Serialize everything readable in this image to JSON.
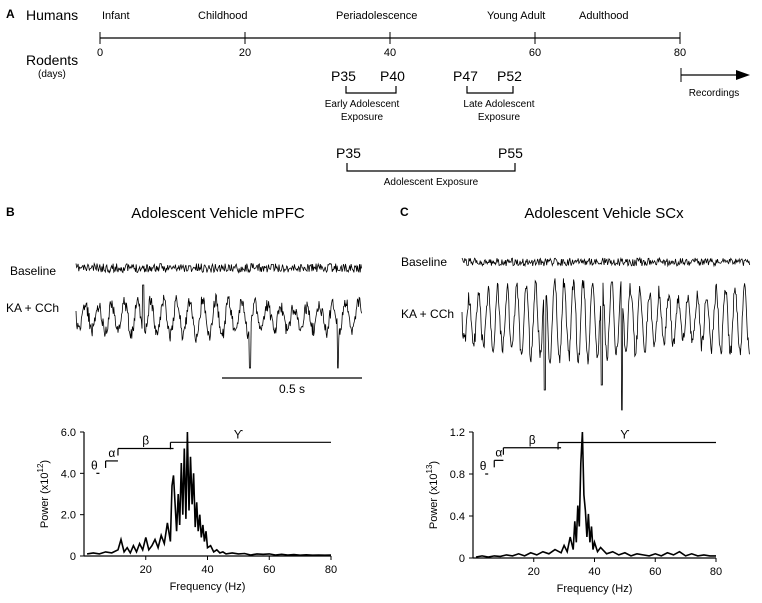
{
  "panel_a": {
    "letter": "A",
    "humans_label": "Humans",
    "rodents_label": "Rodents",
    "days_label": "(days)",
    "stages": [
      "Infant",
      "Childhood",
      "Periadolescence",
      "Young Adult",
      "Adulthood"
    ],
    "ticks": [
      "0",
      "20",
      "40",
      "60",
      "80"
    ],
    "early": {
      "start": "P35",
      "end": "P40",
      "label_line1": "Early Adolescent",
      "label_line2": "Exposure"
    },
    "late": {
      "start": "P47",
      "end": "P52",
      "label_line1": "Late Adolescent",
      "label_line2": "Exposure"
    },
    "full": {
      "start": "P35",
      "end": "P55",
      "label": "Adolescent Exposure"
    },
    "recordings_label": "Recordings"
  },
  "panel_b": {
    "letter": "B",
    "title": "Adolescent Vehicle mPFC",
    "baseline_label": "Baseline",
    "drug_label": "KA + CCh",
    "scale_label": "0.5 s"
  },
  "panel_c": {
    "letter": "C",
    "title": "Adolescent Vehicle SCx",
    "baseline_label": "Baseline",
    "drug_label": "KA + CCh"
  },
  "bands": {
    "theta": "θ",
    "alpha": "α",
    "beta": "β",
    "gamma": "ϒ"
  },
  "chart_data": [
    {
      "type": "line",
      "panel": "B",
      "xlabel": "Frequency (Hz)",
      "ylabel": "Power (x10",
      "ylabel_exp": "12",
      "ylabel_end": ")",
      "xlim": [
        0,
        80
      ],
      "ylim": [
        0,
        6.0
      ],
      "xticks": [
        "20",
        "40",
        "60",
        "80"
      ],
      "yticks": [
        "0",
        "2.0",
        "4.0",
        "6.0"
      ],
      "ytick_values": [
        0,
        2.0,
        4.0,
        6.0
      ],
      "xtick_values": [
        20,
        40,
        60,
        80
      ],
      "x": [
        1,
        3,
        5,
        7,
        9,
        11,
        12,
        13,
        14,
        15,
        16,
        17,
        18,
        19,
        20,
        21,
        22,
        23,
        24,
        25,
        26,
        27,
        28,
        28.5,
        29,
        30,
        30.5,
        31,
        31.5,
        32,
        32.5,
        33,
        33.5,
        34,
        34.5,
        35,
        35.5,
        36,
        36.5,
        37,
        37.5,
        38,
        38.5,
        39,
        39.5,
        40,
        41,
        42,
        43,
        44,
        45,
        46,
        48,
        50,
        52,
        54,
        56,
        58,
        60,
        62,
        64,
        66,
        68,
        70,
        72,
        74,
        76,
        78,
        80
      ],
      "y": [
        0.1,
        0.15,
        0.1,
        0.2,
        0.15,
        0.3,
        0.8,
        0.2,
        0.4,
        0.15,
        0.5,
        0.2,
        0.6,
        0.3,
        0.9,
        0.3,
        0.5,
        0.8,
        0.4,
        1.0,
        0.6,
        1.6,
        0.7,
        3.4,
        3.9,
        1.2,
        3.0,
        1.5,
        4.5,
        2.0,
        5.2,
        1.8,
        6.0,
        2.2,
        4.8,
        2.5,
        4.0,
        1.4,
        2.6,
        1.2,
        2.0,
        0.9,
        1.5,
        0.7,
        1.2,
        0.4,
        0.5,
        0.2,
        0.3,
        0.15,
        0.2,
        0.1,
        0.15,
        0.1,
        0.12,
        0.05,
        0.1,
        0.08,
        0.1,
        0.05,
        0.08,
        0.05,
        0.07,
        0.04,
        0.06,
        0.04,
        0.05,
        0.04,
        0.05
      ],
      "bands": [
        {
          "name": "θ",
          "from": 4,
          "to": 5,
          "y": 4.0
        },
        {
          "name": "α",
          "from": 7,
          "to": 11,
          "y": 4.6
        },
        {
          "name": "β",
          "from": 11,
          "to": 29,
          "y": 5.2
        },
        {
          "name": "ϒ",
          "from": 28,
          "to": 80,
          "y": 5.5
        }
      ]
    },
    {
      "type": "line",
      "panel": "C",
      "xlabel": "Frequency (Hz)",
      "ylabel": "Power (x10",
      "ylabel_exp": "13",
      "ylabel_end": ")",
      "xlim": [
        0,
        80
      ],
      "ylim": [
        0,
        1.2
      ],
      "xticks": [
        "20",
        "40",
        "60",
        "80"
      ],
      "yticks": [
        "0",
        "0.4",
        "0.8",
        "1.2"
      ],
      "ytick_values": [
        0,
        0.4,
        0.8,
        1.2
      ],
      "xtick_values": [
        20,
        40,
        60,
        80
      ],
      "x": [
        1,
        3,
        5,
        7,
        9,
        11,
        13,
        15,
        17,
        19,
        21,
        23,
        25,
        27,
        29,
        30,
        31,
        32,
        33,
        33.5,
        34,
        34.5,
        35,
        35.5,
        36,
        36.5,
        37,
        37.5,
        38,
        38.5,
        39,
        39.5,
        40,
        41,
        42,
        44,
        46,
        48,
        50,
        52,
        54,
        56,
        58,
        60,
        62,
        64,
        66,
        68,
        70,
        72,
        74,
        76,
        78,
        80
      ],
      "y": [
        0.01,
        0.02,
        0.01,
        0.02,
        0.015,
        0.03,
        0.02,
        0.04,
        0.02,
        0.05,
        0.03,
        0.06,
        0.04,
        0.08,
        0.05,
        0.12,
        0.06,
        0.2,
        0.08,
        0.35,
        0.15,
        0.5,
        0.3,
        0.9,
        1.2,
        0.6,
        0.45,
        0.2,
        0.42,
        0.15,
        0.3,
        0.08,
        0.15,
        0.06,
        0.1,
        0.04,
        0.06,
        0.03,
        0.05,
        0.02,
        0.04,
        0.03,
        0.02,
        0.04,
        0.02,
        0.05,
        0.03,
        0.06,
        0.02,
        0.04,
        0.02,
        0.03,
        0.02,
        0.02
      ],
      "bands": [
        {
          "name": "θ",
          "from": 4,
          "to": 5,
          "y": 0.8
        },
        {
          "name": "α",
          "from": 7,
          "to": 10,
          "y": 0.93
        },
        {
          "name": "β",
          "from": 10,
          "to": 29,
          "y": 1.05
        },
        {
          "name": "ϒ",
          "from": 28,
          "to": 80,
          "y": 1.1
        }
      ]
    }
  ]
}
